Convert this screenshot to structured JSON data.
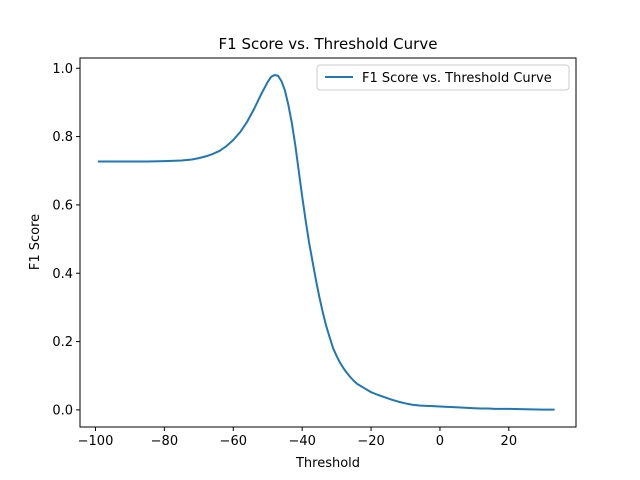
{
  "chart_data": {
    "type": "line",
    "title": "F1 Score vs. Threshold Curve",
    "xlabel": "Threshold",
    "ylabel": "F1 Score",
    "xlim": [
      -104.5,
      39.5
    ],
    "ylim": [
      -0.05,
      1.03
    ],
    "xticks": [
      -100,
      -80,
      -60,
      -40,
      -20,
      0,
      20
    ],
    "xtick_labels": [
      "−100",
      "−80",
      "−60",
      "−40",
      "−20",
      "0",
      "20"
    ],
    "yticks": [
      0.0,
      0.2,
      0.4,
      0.6,
      0.8,
      1.0
    ],
    "ytick_labels": [
      "0.0",
      "0.2",
      "0.4",
      "0.6",
      "0.8",
      "1.0"
    ],
    "grid": false,
    "legend_position": "top-right",
    "series": [
      {
        "name": "F1 Score vs. Threshold Curve",
        "color": "#1f77b4",
        "x": [
          -99,
          -95,
          -90,
          -85,
          -80,
          -75,
          -72,
          -70,
          -68,
          -66,
          -64,
          -62,
          -60,
          -58,
          -56,
          -54,
          -52,
          -50,
          -49,
          -48,
          -47,
          -46,
          -45,
          -44,
          -43,
          -42,
          -41,
          -40,
          -39,
          -38,
          -37,
          -36,
          -35,
          -34,
          -33,
          -32,
          -31,
          -30,
          -29,
          -28,
          -27,
          -26,
          -25,
          -24,
          -23,
          -22,
          -21,
          -20,
          -18,
          -16,
          -14,
          -12,
          -10,
          -8,
          -6,
          -4,
          -2,
          0,
          2,
          4,
          6,
          8,
          10,
          12,
          14,
          16,
          18,
          20,
          25,
          30,
          33
        ],
        "y": [
          0.727,
          0.727,
          0.727,
          0.727,
          0.728,
          0.73,
          0.733,
          0.737,
          0.742,
          0.749,
          0.758,
          0.772,
          0.79,
          0.813,
          0.843,
          0.88,
          0.922,
          0.96,
          0.975,
          0.98,
          0.978,
          0.962,
          0.935,
          0.892,
          0.84,
          0.775,
          0.7,
          0.625,
          0.555,
          0.49,
          0.435,
          0.38,
          0.33,
          0.285,
          0.245,
          0.212,
          0.18,
          0.158,
          0.138,
          0.122,
          0.108,
          0.096,
          0.085,
          0.076,
          0.07,
          0.064,
          0.058,
          0.052,
          0.044,
          0.037,
          0.03,
          0.024,
          0.019,
          0.015,
          0.013,
          0.012,
          0.011,
          0.01,
          0.009,
          0.008,
          0.007,
          0.006,
          0.005,
          0.004,
          0.004,
          0.003,
          0.003,
          0.003,
          0.002,
          0.001,
          0.001
        ]
      }
    ]
  }
}
